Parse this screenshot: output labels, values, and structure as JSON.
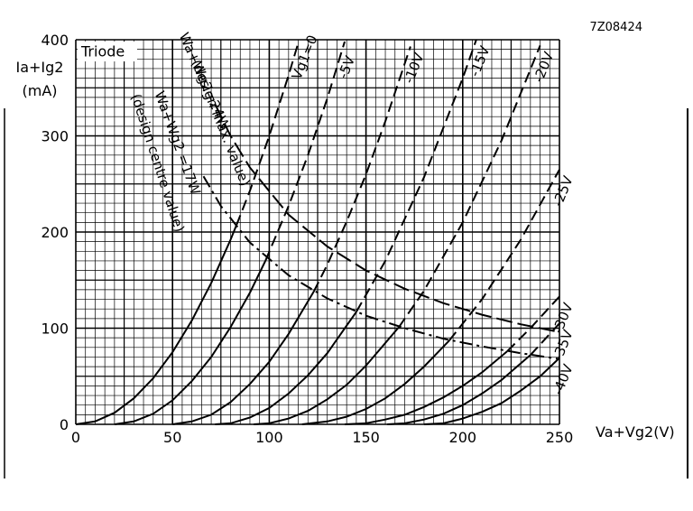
{
  "chart_data": {
    "type": "line",
    "title": "Triode",
    "figure_code": "7Z08424",
    "y_label": [
      "Ia+Ig2",
      "(mA)"
    ],
    "x_label": "Va+Vg2(V)",
    "xlim": [
      0,
      250
    ],
    "ylim": [
      0,
      400
    ],
    "xticks": [
      0,
      50,
      100,
      150,
      200,
      250
    ],
    "yticks": [
      0,
      100,
      200,
      300,
      400
    ],
    "grid": true,
    "color": "#000000",
    "series": [
      {
        "name": "Vg1=0",
        "segments": [
          {
            "style": "solid",
            "x": [
              0,
              10,
              20,
              30,
              40,
              50,
              60,
              70,
              80,
              83
            ],
            "values": [
              0,
              3,
              12,
              27,
              48,
              75,
              108,
              147,
              192,
              207
            ]
          },
          {
            "style": "dashed",
            "x": [
              83,
              90,
              100,
              110,
              115
            ],
            "values": [
              207,
              243,
              300,
              363,
              397
            ]
          }
        ]
      },
      {
        "name": "-5V",
        "segments": [
          {
            "style": "solid",
            "x": [
              20,
              30,
              40,
              50,
              60,
              70,
              80,
              90,
              98
            ],
            "values": [
              0,
              3,
              11,
              25,
              45,
              70,
              101,
              137,
              170
            ]
          },
          {
            "style": "dashed",
            "x": [
              98,
              110,
              120,
              130,
              139
            ],
            "values": [
              170,
              227,
              280,
              339,
              398
            ]
          }
        ]
      },
      {
        "name": "-10V",
        "segments": [
          {
            "style": "solid",
            "x": [
              50,
              60,
              70,
              80,
              90,
              100,
              110,
              123
            ],
            "values": [
              0,
              3,
              10,
              23,
              42,
              65,
              94,
              138
            ]
          },
          {
            "style": "dashed",
            "x": [
              123,
              130,
              140,
              150,
              160,
              173
            ],
            "values": [
              138,
              166,
              211,
              260,
              315,
              393
            ]
          }
        ]
      },
      {
        "name": "-15V",
        "segments": [
          {
            "style": "solid",
            "x": [
              72,
              80,
              90,
              100,
              110,
              120,
              130,
              145
            ],
            "values": [
              0,
              1,
              7,
              17,
              32,
              51,
              74,
              117
            ]
          },
          {
            "style": "dashed",
            "x": [
              145,
              160,
              180,
              200,
              207
            ],
            "values": [
              117,
              170,
              257,
              360,
              400
            ]
          }
        ]
      },
      {
        "name": "-20V",
        "segments": [
          {
            "style": "solid",
            "x": [
              92,
              100,
              110,
              120,
              130,
              140,
              150,
              167
            ],
            "values": [
              0,
              1,
              6,
              14,
              26,
              41,
              61,
              101
            ]
          },
          {
            "style": "dashed",
            "x": [
              167,
              180,
              200,
              220,
              240
            ],
            "values": [
              101,
              139,
              210,
              295,
              394
            ]
          }
        ]
      },
      {
        "name": "-25V",
        "segments": [
          {
            "style": "solid",
            "x": [
              117,
              130,
              140,
              150,
              160,
              170,
              180,
              193
            ],
            "values": [
              0,
              3,
              8,
              16,
              27,
              42,
              60,
              87
            ]
          },
          {
            "style": "dashed",
            "x": [
              193,
              210,
              230,
              250
            ],
            "values": [
              87,
              130,
              192,
              265
            ]
          }
        ]
      },
      {
        "name": "-30V",
        "segments": [
          {
            "style": "solid",
            "x": [
              139,
              150,
              160,
              170,
              180,
              190,
              200,
              210,
              223
            ],
            "values": [
              0,
              1,
              5,
              10,
              18,
              28,
              40,
              54,
              76
            ]
          },
          {
            "style": "dashed",
            "x": [
              223,
              235,
              250
            ],
            "values": [
              76,
              100,
              133
            ]
          }
        ]
      },
      {
        "name": "-35V",
        "segments": [
          {
            "style": "solid",
            "x": [
              161,
              170,
              180,
              190,
              200,
              210,
              220,
              235
            ],
            "values": [
              0,
              1,
              5,
              11,
              20,
              32,
              46,
              72
            ]
          },
          {
            "style": "dashed",
            "x": [
              235,
              250
            ],
            "values": [
              72,
              105
            ]
          }
        ]
      },
      {
        "name": "-40V",
        "segments": [
          {
            "style": "solid",
            "x": [
              180,
              190,
              200,
              210,
              220,
              230,
              240,
              250
            ],
            "values": [
              0,
              1,
              6,
              13,
              22,
              35,
              50,
              69
            ]
          }
        ]
      }
    ],
    "limits": [
      {
        "name": "Wa+Wg2=24W",
        "note": "(design max. value)",
        "style": "long-dash",
        "x": [
          72,
          80,
          90,
          110,
          130,
          150,
          170,
          190,
          210,
          230,
          250
        ],
        "values": [
          333,
          300,
          267,
          218,
          185,
          160,
          141,
          126,
          114,
          104,
          96
        ]
      },
      {
        "name": "Wa+Wg2 =17W",
        "note": "(design centre value)",
        "style": "dash-dot",
        "x": [
          66,
          75,
          90,
          110,
          130,
          150,
          170,
          190,
          210,
          230,
          250
        ],
        "values": [
          258,
          227,
          189,
          155,
          131,
          113,
          100,
          89,
          81,
          74,
          68
        ]
      }
    ]
  }
}
